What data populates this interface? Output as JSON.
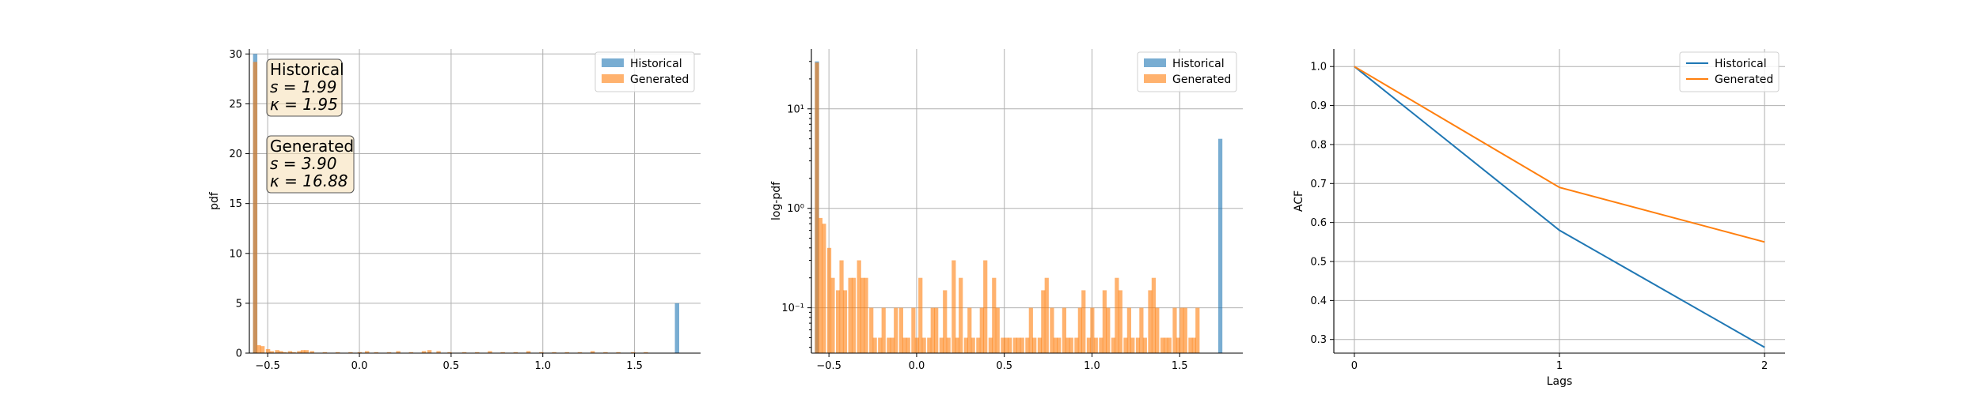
{
  "colors": {
    "historical": "#1f77b4",
    "generated": "#ff7f0e",
    "stat_box_fill": "#f5deb3",
    "grid": "#b0b0b0"
  },
  "chart_data": [
    {
      "type": "bar",
      "title": "",
      "xlabel": "",
      "ylabel": "pdf",
      "xlim": [
        -0.6,
        1.86
      ],
      "ylim": [
        0,
        30.5
      ],
      "yscale": "linear",
      "grid": true,
      "legend": {
        "placement": "top-right",
        "entries": [
          "Historical",
          "Generated"
        ]
      },
      "xticks": [
        -0.5,
        0.0,
        0.5,
        1.0,
        1.5
      ],
      "xtick_labels": [
        "−0.5",
        "0.0",
        "0.5",
        "1.0",
        "1.5"
      ],
      "yticks": [
        0,
        5,
        10,
        15,
        20,
        25,
        30
      ],
      "ytick_labels": [
        "0",
        "5",
        "10",
        "15",
        "20",
        "25",
        "30"
      ],
      "bin_width": 0.0235,
      "series": [
        {
          "name": "Historical",
          "bins": [
            [
              -0.58,
              30.0
            ],
            [
              1.72,
              5.0
            ]
          ]
        },
        {
          "name": "Generated",
          "bins": [
            [
              -0.58,
              29.2
            ],
            [
              -0.56,
              0.8
            ],
            [
              -0.54,
              0.7
            ],
            [
              -0.51,
              0.4
            ],
            [
              -0.49,
              0.2
            ],
            [
              -0.46,
              0.3
            ],
            [
              -0.44,
              0.2
            ],
            [
              -0.42,
              0.1
            ],
            [
              -0.39,
              0.2
            ],
            [
              -0.37,
              0.1
            ],
            [
              -0.34,
              0.2
            ],
            [
              -0.32,
              0.3
            ],
            [
              -0.3,
              0.3
            ],
            [
              -0.27,
              0.2
            ],
            [
              -0.2,
              0.1
            ],
            [
              -0.13,
              0.1
            ],
            [
              -0.06,
              0.1
            ],
            [
              -0.01,
              0.1
            ],
            [
              0.03,
              0.2
            ],
            [
              0.08,
              0.1
            ],
            [
              0.15,
              0.1
            ],
            [
              0.2,
              0.2
            ],
            [
              0.27,
              0.1
            ],
            [
              0.34,
              0.2
            ],
            [
              0.37,
              0.3
            ],
            [
              0.42,
              0.2
            ],
            [
              0.48,
              0.1
            ],
            [
              0.56,
              0.1
            ],
            [
              0.63,
              0.1
            ],
            [
              0.7,
              0.2
            ],
            [
              0.77,
              0.1
            ],
            [
              0.84,
              0.1
            ],
            [
              0.91,
              0.2
            ],
            [
              0.98,
              0.1
            ],
            [
              1.05,
              0.1
            ],
            [
              1.12,
              0.1
            ],
            [
              1.19,
              0.1
            ],
            [
              1.26,
              0.2
            ],
            [
              1.33,
              0.1
            ],
            [
              1.4,
              0.1
            ],
            [
              1.48,
              0.1
            ],
            [
              1.55,
              0.1
            ]
          ]
        }
      ],
      "annotations": [
        {
          "label": "Historical",
          "skew": "s = 1.99",
          "kurt": "κ = 1.95"
        },
        {
          "label": "Generated",
          "skew": "s = 3.90",
          "kurt": "κ = 16.88"
        }
      ]
    },
    {
      "type": "bar",
      "title": "",
      "xlabel": "",
      "ylabel": "log-pdf",
      "xlim": [
        -0.6,
        1.86
      ],
      "ylim": [
        0.035,
        40
      ],
      "yscale": "log",
      "grid": true,
      "legend": {
        "placement": "top-right",
        "entries": [
          "Historical",
          "Generated"
        ]
      },
      "xticks": [
        -0.5,
        0.0,
        0.5,
        1.0,
        1.5
      ],
      "xtick_labels": [
        "−0.5",
        "0.0",
        "0.5",
        "1.0",
        "1.5"
      ],
      "yticks": [
        0.1,
        1,
        10
      ],
      "ytick_labels": [
        "10⁻¹",
        "10⁰",
        "10¹"
      ],
      "bin_width": 0.0235,
      "series": [
        {
          "name": "Historical",
          "bins": [
            [
              -0.58,
              30.0
            ],
            [
              1.72,
              5.0
            ]
          ]
        },
        {
          "name": "Generated",
          "bins": [
            [
              -0.58,
              29.2
            ],
            [
              -0.56,
              0.8
            ],
            [
              -0.54,
              0.7
            ],
            [
              -0.51,
              0.4
            ],
            [
              -0.49,
              0.2
            ],
            [
              -0.46,
              0.15
            ],
            [
              -0.44,
              0.3
            ],
            [
              -0.42,
              0.15
            ],
            [
              -0.39,
              0.2
            ],
            [
              -0.37,
              0.2
            ],
            [
              -0.34,
              0.3
            ],
            [
              -0.32,
              0.2
            ],
            [
              -0.3,
              0.2
            ],
            [
              -0.27,
              0.1
            ],
            [
              -0.25,
              0.05
            ],
            [
              -0.22,
              0.05
            ],
            [
              -0.2,
              0.1
            ],
            [
              -0.17,
              0.05
            ],
            [
              -0.15,
              0.05
            ],
            [
              -0.13,
              0.1
            ],
            [
              -0.1,
              0.1
            ],
            [
              -0.08,
              0.05
            ],
            [
              -0.06,
              0.05
            ],
            [
              -0.03,
              0.1
            ],
            [
              -0.01,
              0.05
            ],
            [
              0.01,
              0.2
            ],
            [
              0.03,
              0.05
            ],
            [
              0.06,
              0.05
            ],
            [
              0.08,
              0.1
            ],
            [
              0.1,
              0.1
            ],
            [
              0.13,
              0.05
            ],
            [
              0.15,
              0.15
            ],
            [
              0.17,
              0.05
            ],
            [
              0.2,
              0.3
            ],
            [
              0.22,
              0.05
            ],
            [
              0.24,
              0.2
            ],
            [
              0.27,
              0.05
            ],
            [
              0.29,
              0.1
            ],
            [
              0.31,
              0.05
            ],
            [
              0.34,
              0.05
            ],
            [
              0.36,
              0.1
            ],
            [
              0.38,
              0.3
            ],
            [
              0.41,
              0.05
            ],
            [
              0.43,
              0.2
            ],
            [
              0.45,
              0.1
            ],
            [
              0.48,
              0.05
            ],
            [
              0.5,
              0.05
            ],
            [
              0.52,
              0.05
            ],
            [
              0.55,
              0.05
            ],
            [
              0.57,
              0.05
            ],
            [
              0.59,
              0.05
            ],
            [
              0.62,
              0.05
            ],
            [
              0.64,
              0.1
            ],
            [
              0.66,
              0.05
            ],
            [
              0.69,
              0.05
            ],
            [
              0.71,
              0.15
            ],
            [
              0.73,
              0.2
            ],
            [
              0.76,
              0.1
            ],
            [
              0.78,
              0.05
            ],
            [
              0.8,
              0.05
            ],
            [
              0.83,
              0.1
            ],
            [
              0.85,
              0.05
            ],
            [
              0.87,
              0.05
            ],
            [
              0.9,
              0.05
            ],
            [
              0.92,
              0.1
            ],
            [
              0.94,
              0.15
            ],
            [
              0.97,
              0.05
            ],
            [
              0.99,
              0.1
            ],
            [
              1.01,
              0.05
            ],
            [
              1.04,
              0.05
            ],
            [
              1.06,
              0.15
            ],
            [
              1.08,
              0.1
            ],
            [
              1.11,
              0.05
            ],
            [
              1.13,
              0.2
            ],
            [
              1.15,
              0.15
            ],
            [
              1.18,
              0.05
            ],
            [
              1.2,
              0.1
            ],
            [
              1.22,
              0.05
            ],
            [
              1.25,
              0.05
            ],
            [
              1.27,
              0.1
            ],
            [
              1.29,
              0.05
            ],
            [
              1.32,
              0.15
            ],
            [
              1.34,
              0.2
            ],
            [
              1.36,
              0.1
            ],
            [
              1.39,
              0.05
            ],
            [
              1.41,
              0.05
            ],
            [
              1.43,
              0.05
            ],
            [
              1.46,
              0.1
            ],
            [
              1.48,
              0.05
            ],
            [
              1.5,
              0.1
            ],
            [
              1.52,
              0.1
            ],
            [
              1.55,
              0.05
            ],
            [
              1.57,
              0.05
            ],
            [
              1.59,
              0.1
            ]
          ]
        }
      ]
    },
    {
      "type": "line",
      "title": "",
      "xlabel": "Lags",
      "ylabel": "ACF",
      "xlim": [
        -0.1,
        2.1
      ],
      "ylim": [
        0.265,
        1.045
      ],
      "grid": true,
      "legend": {
        "placement": "top-right",
        "entries": [
          "Historical",
          "Generated"
        ]
      },
      "xticks": [
        0,
        1,
        2
      ],
      "xtick_labels": [
        "0",
        "1",
        "2"
      ],
      "yticks": [
        0.3,
        0.4,
        0.5,
        0.6,
        0.7,
        0.8,
        0.9,
        1.0
      ],
      "ytick_labels": [
        "0.3",
        "0.4",
        "0.5",
        "0.6",
        "0.7",
        "0.8",
        "0.9",
        "1.0"
      ],
      "x": [
        0,
        1,
        2
      ],
      "series": [
        {
          "name": "Historical",
          "values": [
            1.0,
            0.58,
            0.28
          ]
        },
        {
          "name": "Generated",
          "values": [
            1.0,
            0.69,
            0.55
          ]
        }
      ]
    }
  ]
}
